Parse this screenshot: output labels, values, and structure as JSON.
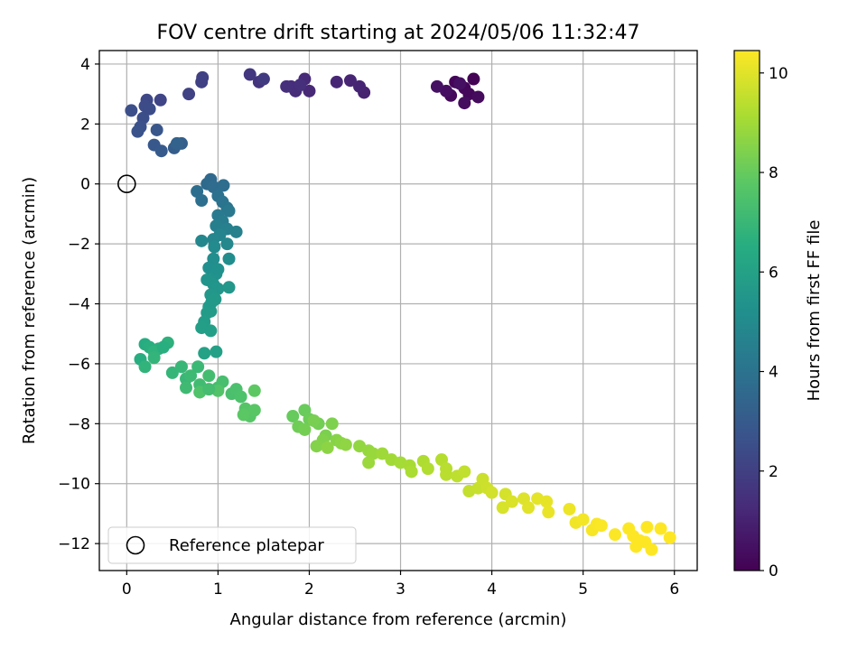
{
  "chart_data": {
    "type": "scatter",
    "title": "FOV centre drift starting at 2024/05/06 11:32:47",
    "xlabel": "Angular distance from reference (arcmin)",
    "ylabel": "Rotation from reference (arcmin)",
    "xlim": [
      -0.3,
      6.25
    ],
    "ylim": [
      -12.9,
      4.45
    ],
    "xticks": [
      0,
      1,
      2,
      3,
      4,
      5,
      6
    ],
    "yticks": [
      -12,
      -10,
      -8,
      -6,
      -4,
      -2,
      0,
      2,
      4
    ],
    "grid": true,
    "legend": {
      "placement": "bottom-left",
      "entries": [
        "Reference platepar"
      ]
    },
    "colorbar": {
      "label": "Hours from first FF file",
      "ticks": [
        0,
        2,
        4,
        6,
        8,
        10
      ],
      "range": [
        0,
        10.45
      ],
      "colormap": "viridis"
    },
    "reference_point": {
      "x": 0,
      "y": 0,
      "label": "Reference platepar"
    },
    "series": [
      {
        "points": [
          [
            3.8,
            3.5,
            0.05
          ],
          [
            3.6,
            3.4,
            0.1
          ],
          [
            3.7,
            3.2,
            0.15
          ],
          [
            3.75,
            3.0,
            0.2
          ],
          [
            3.55,
            2.95,
            0.25
          ],
          [
            3.85,
            2.9,
            0.3
          ],
          [
            3.7,
            2.7,
            0.35
          ],
          [
            3.5,
            3.1,
            0.4
          ],
          [
            3.65,
            3.35,
            0.45
          ],
          [
            3.4,
            3.25,
            0.5
          ],
          [
            2.6,
            3.05,
            1.0
          ],
          [
            2.55,
            3.25,
            1.05
          ],
          [
            2.45,
            3.45,
            1.1
          ],
          [
            2.3,
            3.4,
            1.15
          ],
          [
            2.0,
            3.1,
            1.2
          ],
          [
            1.95,
            3.5,
            1.25
          ],
          [
            1.85,
            3.1,
            1.3
          ],
          [
            1.8,
            3.25,
            1.35
          ],
          [
            1.9,
            3.3,
            1.4
          ],
          [
            1.75,
            3.25,
            1.45
          ],
          [
            1.45,
            3.4,
            1.6
          ],
          [
            1.35,
            3.65,
            1.7
          ],
          [
            1.5,
            3.5,
            1.8
          ],
          [
            0.83,
            3.55,
            2.0
          ],
          [
            0.82,
            3.4,
            2.05
          ],
          [
            0.68,
            3.0,
            2.1
          ],
          [
            0.37,
            2.8,
            2.2
          ],
          [
            0.22,
            2.8,
            2.3
          ],
          [
            0.2,
            2.6,
            2.4
          ],
          [
            0.18,
            2.2,
            2.5
          ],
          [
            0.05,
            2.45,
            2.55
          ],
          [
            0.15,
            1.9,
            2.6
          ],
          [
            0.12,
            1.75,
            2.7
          ],
          [
            0.33,
            1.8,
            2.8
          ],
          [
            0.3,
            1.3,
            2.9
          ],
          [
            0.38,
            1.1,
            3.0
          ],
          [
            0.52,
            1.2,
            3.1
          ],
          [
            0.6,
            1.35,
            3.2
          ],
          [
            0.55,
            1.35,
            3.3
          ],
          [
            0.25,
            2.5,
            2.45
          ],
          [
            0.92,
            0.15,
            3.6
          ],
          [
            0.88,
            0.0,
            3.65
          ],
          [
            0.95,
            -0.1,
            3.7
          ],
          [
            1.06,
            -0.05,
            3.75
          ],
          [
            0.77,
            -0.25,
            3.8
          ],
          [
            0.82,
            -0.55,
            3.85
          ],
          [
            1.0,
            -0.4,
            3.9
          ],
          [
            1.05,
            -0.6,
            4.0
          ],
          [
            1.1,
            -0.8,
            4.1
          ],
          [
            1.12,
            -0.9,
            4.2
          ],
          [
            1.0,
            -1.05,
            4.3
          ],
          [
            1.05,
            -1.25,
            4.4
          ],
          [
            0.98,
            -1.4,
            4.5
          ],
          [
            1.1,
            -1.5,
            4.55
          ],
          [
            1.2,
            -1.6,
            4.6
          ],
          [
            1.02,
            -1.7,
            4.7
          ],
          [
            0.95,
            -1.85,
            4.8
          ],
          [
            0.82,
            -1.9,
            4.85
          ],
          [
            1.1,
            -2.0,
            4.9
          ],
          [
            0.96,
            -2.1,
            5.0
          ],
          [
            1.12,
            -2.5,
            5.1
          ],
          [
            0.95,
            -2.5,
            5.15
          ],
          [
            0.9,
            -2.8,
            5.2
          ],
          [
            0.98,
            -3.0,
            5.3
          ],
          [
            0.88,
            -3.2,
            5.4
          ],
          [
            0.95,
            -3.35,
            5.45
          ],
          [
            1.0,
            -3.5,
            5.5
          ],
          [
            1.12,
            -3.45,
            5.55
          ],
          [
            0.92,
            -3.7,
            5.6
          ],
          [
            0.97,
            -3.85,
            5.65
          ],
          [
            0.9,
            -4.1,
            5.7
          ],
          [
            0.88,
            -4.3,
            5.75
          ],
          [
            0.85,
            -4.6,
            5.8
          ],
          [
            0.82,
            -4.8,
            5.85
          ],
          [
            0.92,
            -4.9,
            5.9
          ],
          [
            0.98,
            -5.6,
            5.95
          ],
          [
            0.85,
            -5.65,
            6.0
          ],
          [
            0.92,
            -4.25,
            5.72
          ],
          [
            0.93,
            -3.95,
            5.68
          ],
          [
            1.0,
            -2.85,
            5.25
          ],
          [
            0.2,
            -5.35,
            6.5
          ],
          [
            0.15,
            -5.85,
            6.55
          ],
          [
            0.25,
            -5.45,
            6.6
          ],
          [
            0.35,
            -5.5,
            6.65
          ],
          [
            0.45,
            -5.3,
            6.7
          ],
          [
            0.3,
            -5.6,
            6.75
          ],
          [
            0.2,
            -6.1,
            6.8
          ],
          [
            0.3,
            -5.8,
            6.85
          ],
          [
            0.5,
            -6.3,
            6.9
          ],
          [
            0.6,
            -6.1,
            6.95
          ],
          [
            0.65,
            -6.5,
            7.0
          ],
          [
            0.78,
            -6.1,
            7.05
          ],
          [
            0.7,
            -6.4,
            7.1
          ],
          [
            0.65,
            -6.8,
            7.15
          ],
          [
            0.8,
            -6.7,
            7.2
          ],
          [
            0.9,
            -6.4,
            7.25
          ],
          [
            1.0,
            -6.8,
            7.3
          ],
          [
            1.05,
            -6.6,
            7.35
          ],
          [
            1.15,
            -7.0,
            7.4
          ],
          [
            1.2,
            -6.85,
            7.45
          ],
          [
            1.25,
            -7.1,
            7.5
          ],
          [
            0.8,
            -6.95,
            7.55
          ],
          [
            1.0,
            -6.9,
            7.6
          ],
          [
            1.3,
            -7.5,
            7.65
          ],
          [
            1.35,
            -7.75,
            7.7
          ],
          [
            1.4,
            -7.55,
            7.75
          ],
          [
            1.28,
            -7.7,
            7.8
          ],
          [
            1.4,
            -6.9,
            7.85
          ],
          [
            0.4,
            -5.45,
            6.58
          ],
          [
            0.9,
            -6.85,
            7.28
          ],
          [
            1.82,
            -7.75,
            8.0
          ],
          [
            1.95,
            -7.55,
            8.05
          ],
          [
            2.0,
            -7.85,
            8.1
          ],
          [
            1.88,
            -8.1,
            8.15
          ],
          [
            2.1,
            -8.0,
            8.2
          ],
          [
            1.95,
            -8.2,
            8.25
          ],
          [
            2.05,
            -7.9,
            8.3
          ],
          [
            2.18,
            -8.4,
            8.35
          ],
          [
            2.25,
            -8.0,
            8.4
          ],
          [
            2.15,
            -8.55,
            8.45
          ],
          [
            2.08,
            -8.75,
            8.5
          ],
          [
            2.3,
            -8.55,
            8.55
          ],
          [
            2.35,
            -8.65,
            8.6
          ],
          [
            2.2,
            -8.8,
            8.65
          ],
          [
            2.4,
            -8.7,
            8.7
          ],
          [
            2.55,
            -8.75,
            8.75
          ],
          [
            2.65,
            -8.9,
            8.8
          ],
          [
            2.7,
            -9.0,
            8.85
          ],
          [
            2.65,
            -9.3,
            8.9
          ],
          [
            2.8,
            -9.0,
            8.95
          ],
          [
            2.9,
            -9.2,
            9.0
          ],
          [
            3.0,
            -9.3,
            9.05
          ],
          [
            3.1,
            -9.4,
            9.1
          ],
          [
            3.12,
            -9.6,
            9.15
          ],
          [
            3.25,
            -9.25,
            9.2
          ],
          [
            3.3,
            -9.5,
            9.25
          ],
          [
            3.45,
            -9.2,
            9.3
          ],
          [
            3.5,
            -9.5,
            9.35
          ],
          [
            3.5,
            -9.7,
            9.4
          ],
          [
            3.62,
            -9.75,
            9.45
          ],
          [
            3.7,
            -9.6,
            9.5
          ],
          [
            3.75,
            -10.25,
            9.55
          ],
          [
            3.85,
            -10.15,
            9.6
          ],
          [
            3.9,
            -9.85,
            9.65
          ],
          [
            3.95,
            -10.15,
            9.7
          ],
          [
            4.0,
            -10.3,
            9.75
          ],
          [
            4.15,
            -10.35,
            9.8
          ],
          [
            4.12,
            -10.8,
            9.85
          ],
          [
            4.22,
            -10.6,
            9.9
          ],
          [
            4.35,
            -10.5,
            9.95
          ],
          [
            4.4,
            -10.8,
            10.0
          ],
          [
            4.5,
            -10.5,
            10.05
          ],
          [
            4.6,
            -10.6,
            10.1
          ],
          [
            4.62,
            -10.95,
            10.15
          ],
          [
            4.85,
            -10.85,
            10.2
          ],
          [
            4.92,
            -11.3,
            10.25
          ],
          [
            5.0,
            -11.2,
            10.3
          ],
          [
            5.1,
            -11.55,
            10.35
          ],
          [
            5.15,
            -11.35,
            10.38
          ],
          [
            5.2,
            -11.4,
            10.4
          ],
          [
            5.35,
            -11.7,
            10.42
          ],
          [
            5.5,
            -11.5,
            10.44
          ],
          [
            5.55,
            -11.75,
            10.45
          ],
          [
            5.62,
            -11.9,
            10.45
          ],
          [
            5.58,
            -12.1,
            10.45
          ],
          [
            5.7,
            -11.45,
            10.45
          ],
          [
            5.75,
            -12.2,
            10.45
          ],
          [
            5.85,
            -11.5,
            10.45
          ],
          [
            5.95,
            -11.8,
            10.45
          ],
          [
            5.68,
            -11.95,
            10.45
          ]
        ]
      }
    ]
  }
}
